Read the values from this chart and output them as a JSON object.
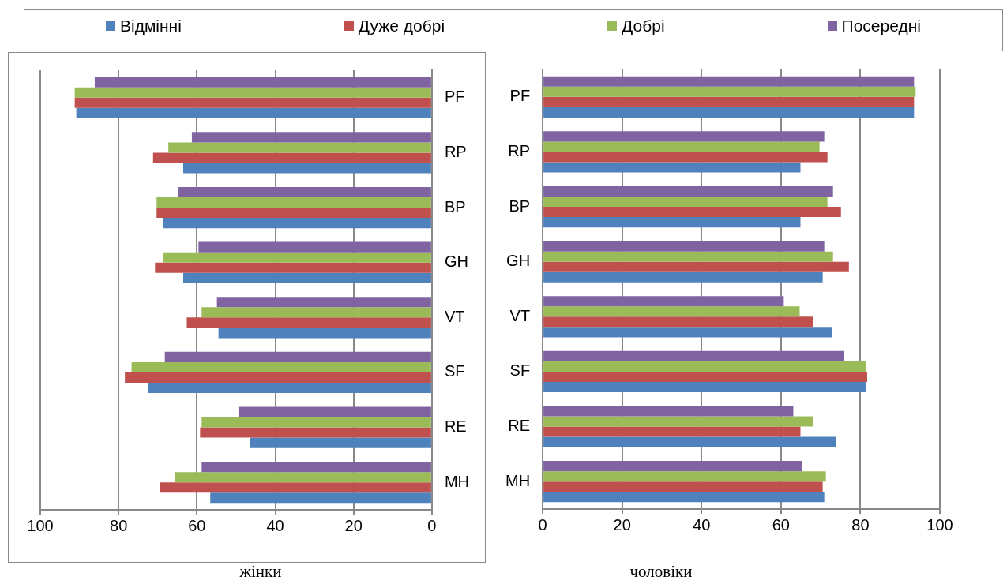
{
  "chart_data": [
    {
      "type": "bar",
      "orientation": "horizontal",
      "xlabel": "жінки",
      "categories": [
        "PF",
        "RP",
        "BP",
        "GH",
        "VT",
        "SF",
        "RE",
        "MH"
      ],
      "xlim": [
        100,
        0
      ],
      "xticks": [
        100,
        80,
        60,
        40,
        20,
        0
      ],
      "grid": "x",
      "legend": "top",
      "series": [
        {
          "name": "Відмінні",
          "color": "#4f81bd",
          "values": [
            90.8,
            63.5,
            68.6,
            63.5,
            54.5,
            72.4,
            46.4,
            56.6
          ]
        },
        {
          "name": "Дуже добрі",
          "color": "#c0504d",
          "values": [
            91.2,
            71.2,
            70.3,
            70.7,
            62.6,
            78.4,
            59.2,
            69.4
          ]
        },
        {
          "name": "Добрі",
          "color": "#9bbb59",
          "values": [
            91.2,
            67.3,
            70.3,
            68.6,
            58.8,
            76.7,
            58.8,
            65.6
          ]
        },
        {
          "name": "Посередні",
          "color": "#8064a2",
          "values": [
            86.1,
            61.3,
            64.7,
            59.6,
            54.9,
            68.2,
            49.4,
            58.8
          ]
        }
      ]
    },
    {
      "type": "bar",
      "orientation": "horizontal",
      "xlabel": "чоловіки",
      "categories": [
        "PF",
        "RP",
        "BP",
        "GH",
        "VT",
        "SF",
        "RE",
        "MH"
      ],
      "xlim": [
        0,
        100
      ],
      "xticks": [
        0,
        20,
        40,
        60,
        80,
        100
      ],
      "grid": "x",
      "series": [
        {
          "color": "#4f81bd",
          "values": [
            93.5,
            64.9,
            64.9,
            70.5,
            72.9,
            81.3,
            73.9,
            70.9
          ]
        },
        {
          "color": "#c0504d",
          "values": [
            93.5,
            71.7,
            75.1,
            77.1,
            68.1,
            81.7,
            64.9,
            70.5
          ]
        },
        {
          "color": "#9bbb59",
          "values": [
            93.9,
            69.7,
            71.7,
            73.1,
            64.7,
            81.3,
            68.1,
            71.3
          ]
        },
        {
          "color": "#8064a2",
          "values": [
            93.5,
            70.9,
            73.1,
            70.9,
            60.7,
            75.9,
            63.1,
            65.3
          ]
        }
      ]
    }
  ]
}
